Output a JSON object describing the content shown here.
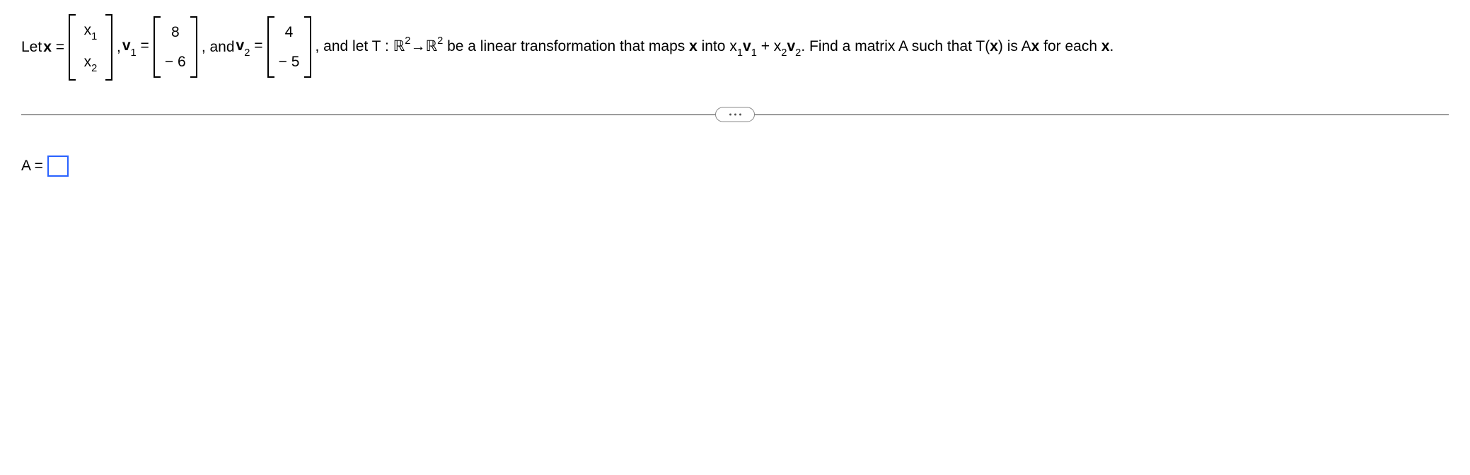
{
  "problem": {
    "let_text": "Let ",
    "x_var_html": "<span class='bold'>x</span> =",
    "x_matrix": [
      "x<span class='sub'>1</span>",
      "x<span class='sub'>2</span>"
    ],
    "comma": ", ",
    "v1_var_html": "<span class='bold'>v</span><span class='sub'>1</span> =",
    "v1_matrix": [
      "8",
      "− 6"
    ],
    "and_text": ", and ",
    "v2_var_html": "<span class='bold'>v</span><span class='sub'>2</span> =",
    "v2_matrix": [
      "4",
      "− 5"
    ],
    "rest_html": ", and let T : <span class='doublestruck'>ℝ</span><span class='sup'>2</span>→<span class='doublestruck'>ℝ</span><span class='sup'>2</span> be a linear transformation that maps <span class='bold'>x</span> into x<span class='sub'>1</span><span class='bold'>v</span><span class='sub'>1</span> + x<span class='sub'>2</span><span class='bold'>v</span><span class='sub'>2</span>. Find a matrix A such that T(<span class='bold'>x</span>) is A<span class='bold'>x</span> for each <span class='bold'>x</span>."
  },
  "answer": {
    "label": "A ="
  },
  "colors": {
    "input_border": "#2962ff",
    "divider": "#333333",
    "dots_border": "#888888",
    "dots_fill": "#555555",
    "background": "#ffffff",
    "text": "#000000"
  }
}
